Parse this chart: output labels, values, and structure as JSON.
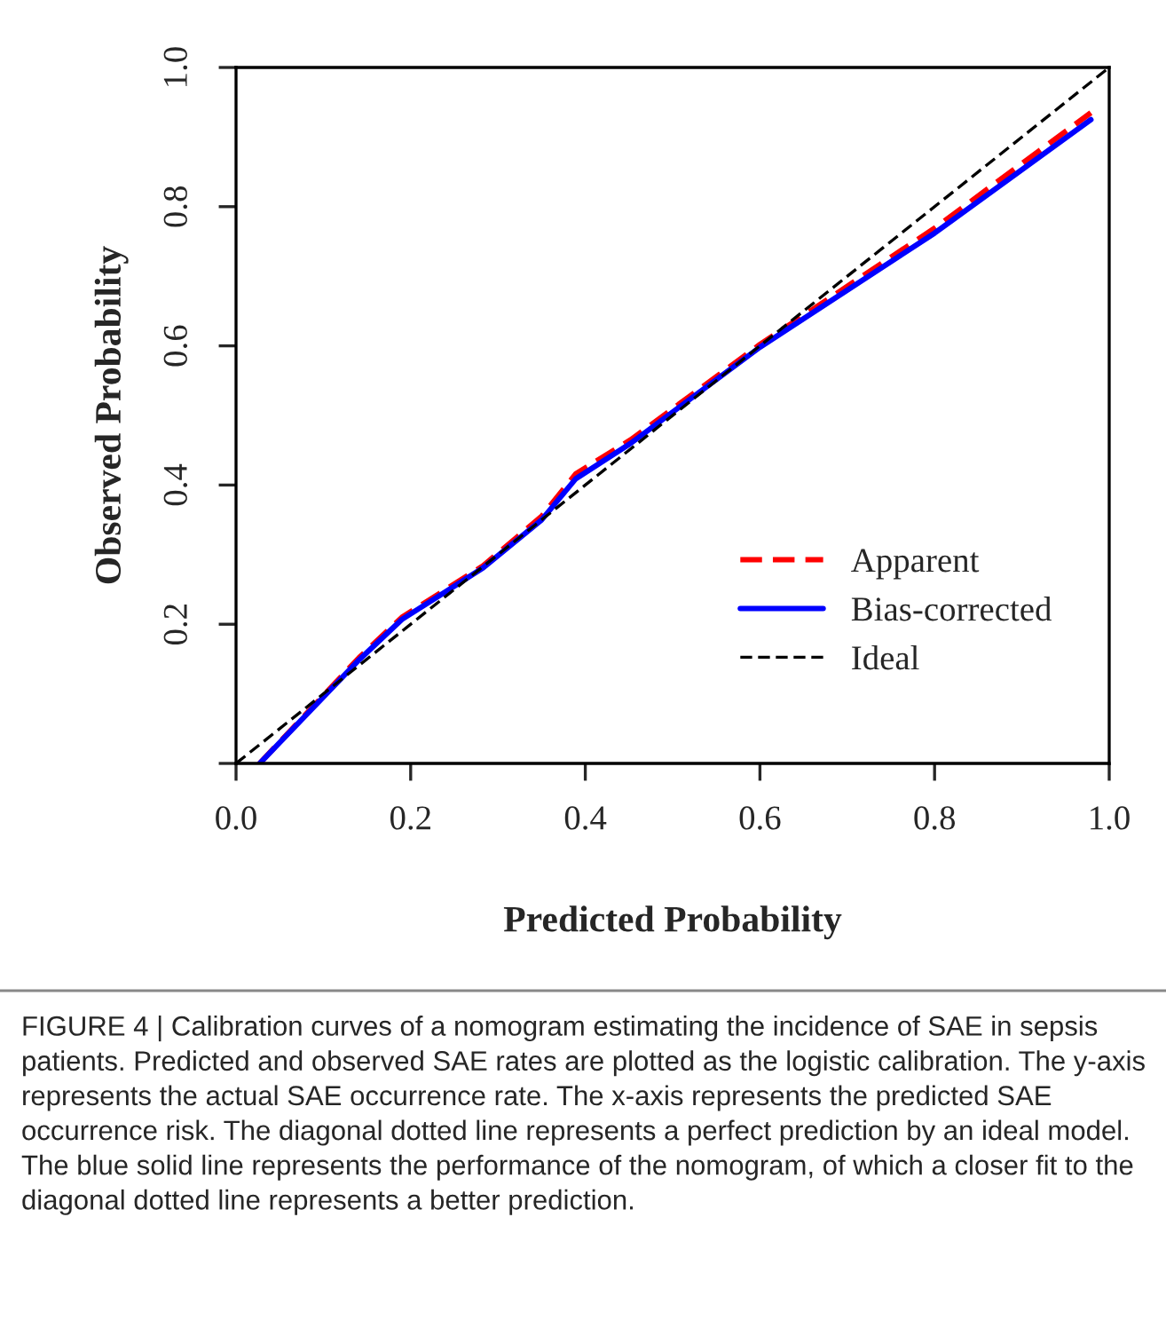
{
  "chart_data": {
    "type": "line",
    "xlabel": "Predicted Probability",
    "ylabel": "Observed Probability",
    "xlim": [
      0,
      1
    ],
    "ylim": [
      0,
      1
    ],
    "xticks": [
      {
        "value": 0,
        "label": "0.0"
      },
      0.2,
      0.4,
      0.6,
      0.8,
      {
        "value": 1,
        "label": "1.0"
      }
    ],
    "yticks": [
      {
        "value": 0,
        "label": null
      },
      0.2,
      0.4,
      0.6,
      0.8,
      {
        "value": 1,
        "label": "1.0"
      }
    ],
    "grid": false,
    "legend": "bottom right",
    "series": [
      {
        "name": "Apparent",
        "color": "#ff0000",
        "line_style": "dashed",
        "x": [
          0.027,
          0.141,
          0.19,
          0.283,
          0.35,
          0.389,
          0.452,
          0.6,
          0.8,
          0.979
        ],
        "values": [
          0,
          0.152,
          0.21,
          0.284,
          0.355,
          0.416,
          0.465,
          0.602,
          0.769,
          0.935
        ]
      },
      {
        "name": "Bias-corrected",
        "color": "#0000ff",
        "line_style": "solid",
        "x": [
          0.027,
          0.141,
          0.19,
          0.283,
          0.35,
          0.389,
          0.452,
          0.6,
          0.8,
          0.979
        ],
        "values": [
          0,
          0.149,
          0.207,
          0.281,
          0.35,
          0.409,
          0.46,
          0.598,
          0.762,
          0.925
        ]
      },
      {
        "name": "Ideal",
        "color": "#000000",
        "line_style": "dashed",
        "x": [
          0,
          1
        ],
        "values": [
          0,
          1
        ]
      }
    ],
    "annotations": [
      "FIGURE 4 | Calibration curves of a nomogram estimating the incidence of SAE in sepsis patients. Predicted and observed SAE rates are plotted as the logistic calibration. The y-axis represents the actual SAE occurrence rate. The x-axis represents the predicted SAE occurrence risk. The diagonal dotted line represents a perfect prediction by an ideal model. The blue solid line represents the performance of the nomogram, of which a closer fit to the diagonal dotted line represents a better prediction."
    ]
  }
}
